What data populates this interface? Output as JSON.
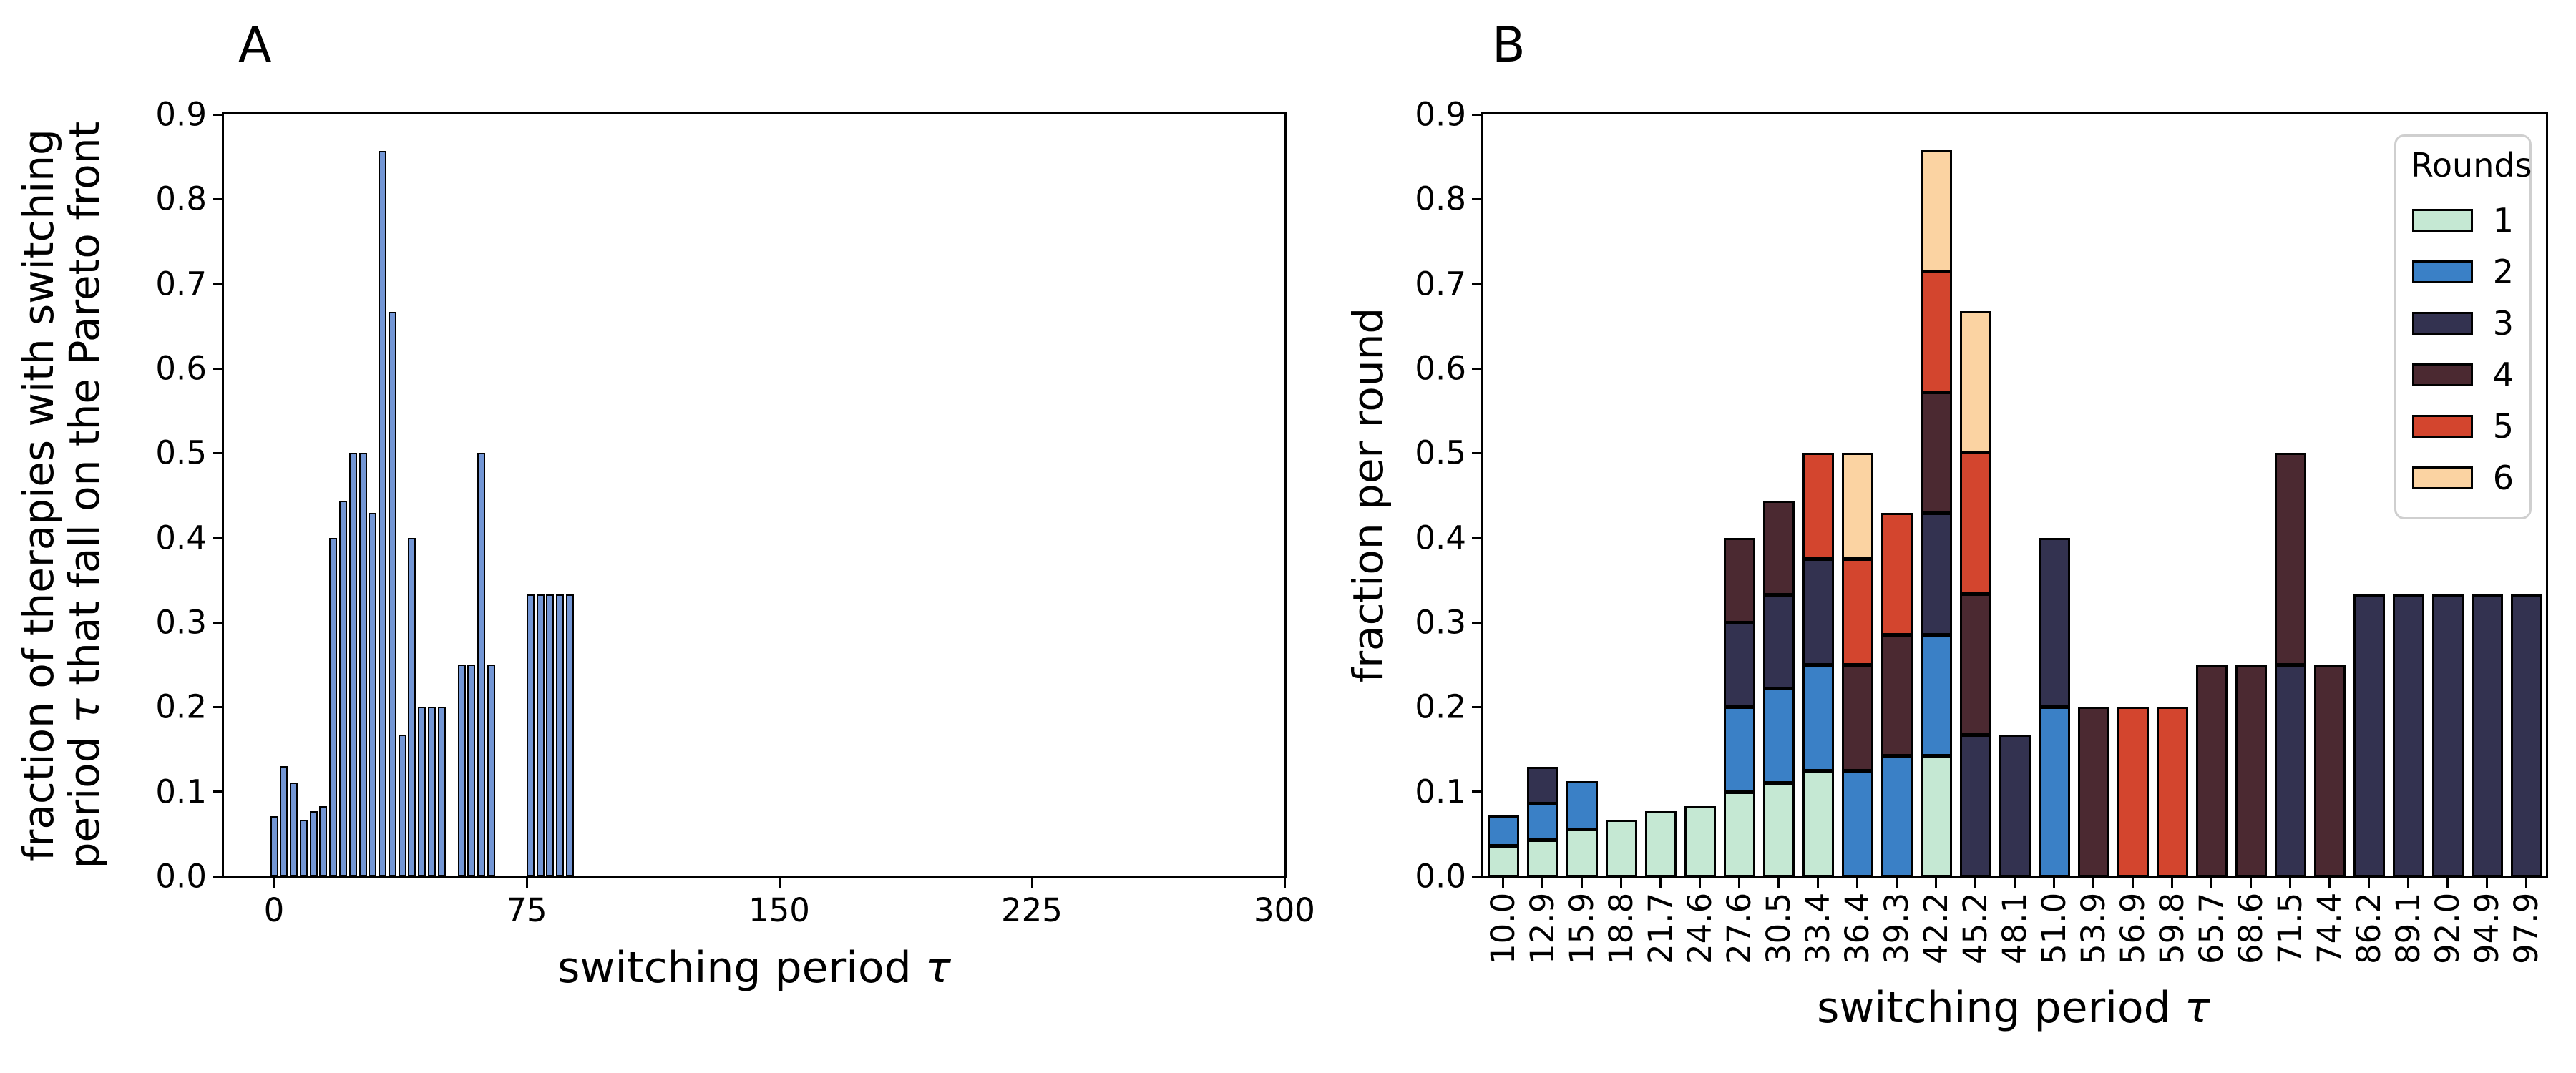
{
  "chart_data": [
    {
      "id": "A",
      "type": "bar",
      "panel_label": "A",
      "xlabel": "switching period τ",
      "xlabel_text": "switching period",
      "tau": "τ",
      "ylabel": "fraction of therapies with switching period τ that fall on the Pareto front",
      "ylabel_line1": "fraction of therapies with switching",
      "ylabel_line2_pre": "period",
      "ylabel_line2_post": "that fall on the Pareto front",
      "xlim": [
        0,
        300
      ],
      "ylim": [
        0,
        0.9
      ],
      "xticks": [
        0,
        75,
        150,
        225,
        300
      ],
      "yticks": [
        0.0,
        0.1,
        0.2,
        0.3,
        0.4,
        0.5,
        0.6,
        0.7,
        0.8,
        0.9
      ],
      "grid": false,
      "bar_color": "#7396d5",
      "bar_edge_color": "#000000",
      "x": [
        10.0,
        12.9,
        15.9,
        18.8,
        21.7,
        24.6,
        27.6,
        30.5,
        33.4,
        36.4,
        39.3,
        42.2,
        45.2,
        48.1,
        51.0,
        53.9,
        56.9,
        59.8,
        65.7,
        68.6,
        71.5,
        74.4,
        86.2,
        89.1,
        92.0,
        94.9,
        97.9
      ],
      "x_plot_offset": -10,
      "values": [
        0.071,
        0.13,
        0.111,
        0.067,
        0.077,
        0.083,
        0.4,
        0.444,
        0.5,
        0.5,
        0.429,
        0.857,
        0.667,
        0.167,
        0.4,
        0.2,
        0.2,
        0.2,
        0.25,
        0.25,
        0.5,
        0.25,
        0.333,
        0.333,
        0.333,
        0.333,
        0.333
      ]
    },
    {
      "id": "B",
      "type": "stacked_bar",
      "panel_label": "B",
      "xlabel": "switching period τ",
      "xlabel_text": "switching period",
      "tau": "τ",
      "ylabel": "fraction per round",
      "ylim": [
        0,
        0.9
      ],
      "yticks": [
        0.0,
        0.1,
        0.2,
        0.3,
        0.4,
        0.5,
        0.6,
        0.7,
        0.8,
        0.9
      ],
      "grid": false,
      "legend": {
        "title": "Rounds",
        "position": "upper right"
      },
      "categories": [
        "10.0",
        "12.9",
        "15.9",
        "18.8",
        "21.7",
        "24.6",
        "27.6",
        "30.5",
        "33.4",
        "36.4",
        "39.3",
        "42.2",
        "45.2",
        "48.1",
        "51.0",
        "53.9",
        "56.9",
        "59.8",
        "65.7",
        "68.6",
        "71.5",
        "74.4",
        "86.2",
        "89.1",
        "92.0",
        "94.9",
        "97.9"
      ],
      "series": [
        {
          "name": "1",
          "color": "#c5e8d3",
          "values": [
            0.036,
            0.043,
            0.056,
            0.067,
            0.077,
            0.083,
            0.1,
            0.111,
            0.125,
            0,
            0,
            0.143,
            0,
            0,
            0,
            0,
            0,
            0,
            0,
            0,
            0,
            0,
            0,
            0,
            0,
            0,
            0
          ]
        },
        {
          "name": "2",
          "color": "#3a80c6",
          "values": [
            0.036,
            0.043,
            0.056,
            0,
            0,
            0,
            0.1,
            0.111,
            0.125,
            0.125,
            0.143,
            0.143,
            0,
            0,
            0.2,
            0,
            0,
            0,
            0,
            0,
            0,
            0,
            0,
            0,
            0,
            0,
            0
          ]
        },
        {
          "name": "3",
          "color": "#333250",
          "values": [
            0,
            0.043,
            0,
            0,
            0,
            0,
            0.1,
            0.111,
            0.125,
            0,
            0,
            0.143,
            0.167,
            0.167,
            0.2,
            0,
            0,
            0,
            0,
            0,
            0.25,
            0,
            0.333,
            0.333,
            0.333,
            0.333,
            0.333
          ]
        },
        {
          "name": "4",
          "color": "#4b2931",
          "values": [
            0,
            0,
            0,
            0,
            0,
            0,
            0.1,
            0.111,
            0,
            0.125,
            0.143,
            0.143,
            0.167,
            0,
            0,
            0.2,
            0,
            0,
            0.25,
            0.25,
            0.25,
            0.25,
            0,
            0,
            0,
            0,
            0
          ]
        },
        {
          "name": "5",
          "color": "#d3452e",
          "values": [
            0,
            0,
            0,
            0,
            0,
            0,
            0,
            0,
            0.125,
            0.125,
            0.143,
            0.143,
            0.167,
            0,
            0,
            0,
            0.2,
            0.2,
            0,
            0,
            0,
            0,
            0,
            0,
            0,
            0,
            0
          ]
        },
        {
          "name": "6",
          "color": "#fbd3a2",
          "values": [
            0,
            0,
            0,
            0,
            0,
            0,
            0,
            0,
            0,
            0.125,
            0,
            0.143,
            0.167,
            0,
            0,
            0,
            0,
            0,
            0,
            0,
            0,
            0,
            0,
            0,
            0,
            0,
            0
          ]
        }
      ]
    }
  ]
}
